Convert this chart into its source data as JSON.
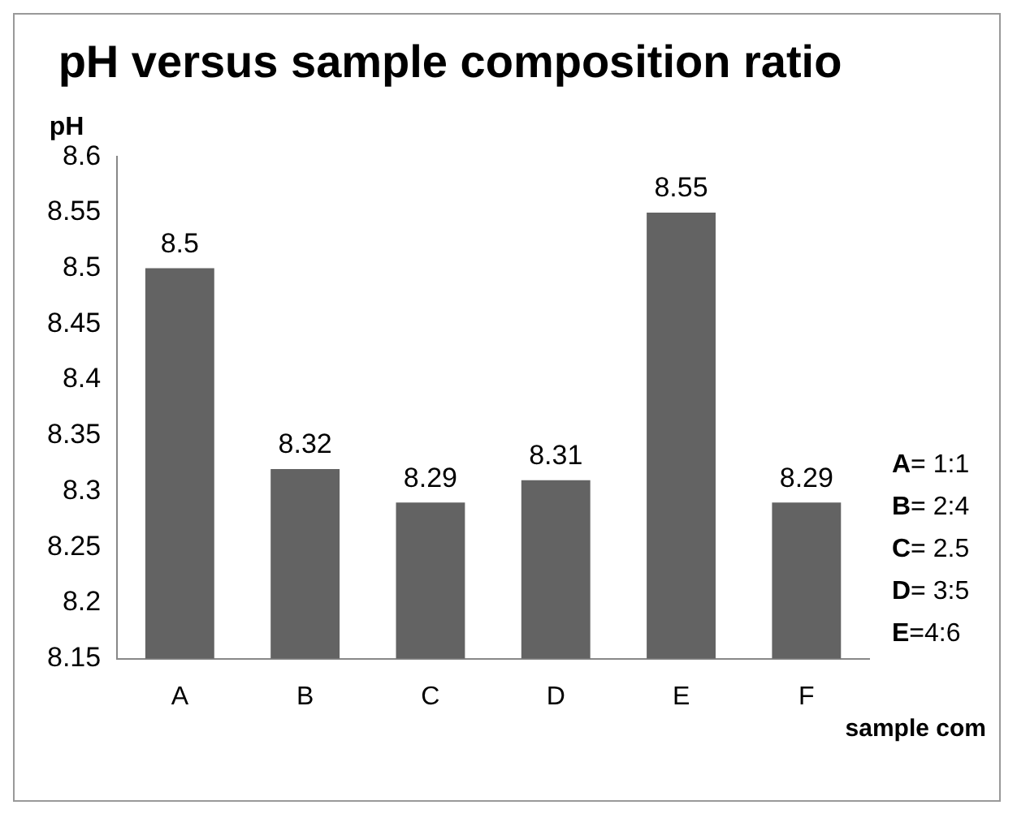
{
  "chart_data": {
    "type": "bar",
    "title": "pH versus sample composition ratio",
    "ylabel": "pH",
    "xlabel": "sample com",
    "categories": [
      "A",
      "B",
      "C",
      "D",
      "E",
      "F"
    ],
    "values": [
      8.5,
      8.32,
      8.29,
      8.31,
      8.55,
      8.29
    ],
    "color": "#636363",
    "ylim": [
      8.15,
      8.6
    ],
    "yticks": [
      8.15,
      8.2,
      8.25,
      8.3,
      8.35,
      8.4,
      8.45,
      8.5,
      8.55,
      8.6
    ],
    "grid": false,
    "legend": false,
    "data_labels": true,
    "annotations": [
      "A= 1:1",
      "B= 2:4",
      "C= 2.5",
      "D= 3:5",
      "E=4:6"
    ]
  }
}
